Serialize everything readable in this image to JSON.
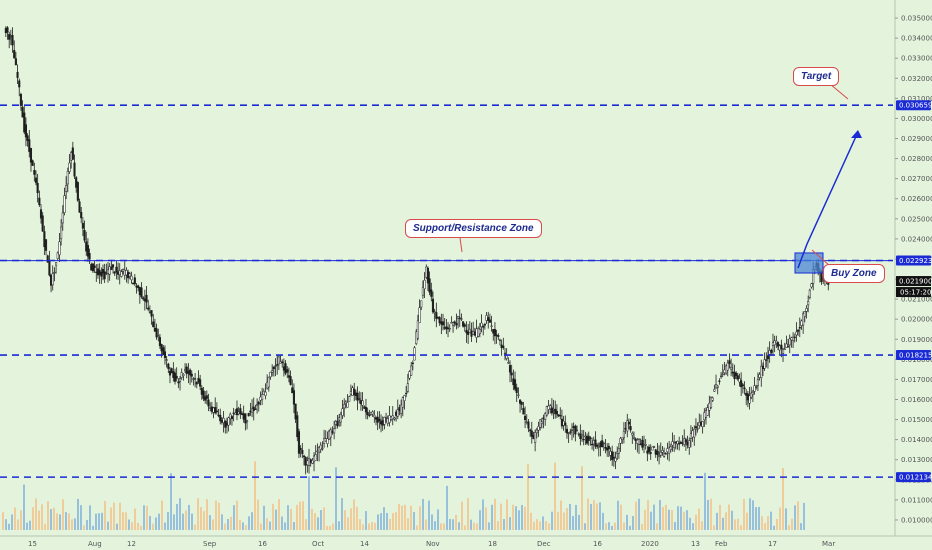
{
  "chart_data": {
    "type": "candlestick",
    "y_ticks": [
      "0.035000",
      "0.034000",
      "0.033000",
      "0.032000",
      "0.031000",
      "0.030000",
      "0.029000",
      "0.028000",
      "0.027000",
      "0.026000",
      "0.025000",
      "0.024000",
      "0.023000",
      "0.022000",
      "0.021000",
      "0.020000",
      "0.019000",
      "0.018000",
      "0.017000",
      "0.016000",
      "0.015000",
      "0.014000",
      "0.013000",
      "0.012000",
      "0.011000",
      "0.010000"
    ],
    "x_ticks": [
      "15",
      "Aug",
      "12",
      "Sep",
      "16",
      "Oct",
      "14",
      "Nov",
      "18",
      "Dec",
      "16",
      "2020",
      "13",
      "Feb",
      "17",
      "Mar"
    ],
    "ylim": [
      0.0095,
      0.0355
    ],
    "levels": [
      {
        "value": 0.030659,
        "label": "0.030659"
      },
      {
        "value": 0.022923,
        "label": "0.022923"
      },
      {
        "value": 0.018215,
        "label": "0.018215"
      },
      {
        "value": 0.012134,
        "label": "0.012134"
      }
    ],
    "current_price": "0.021900",
    "countdown": "05:17:20",
    "price_path": [
      [
        0,
        0.0345
      ],
      [
        1,
        0.034
      ],
      [
        2,
        0.032
      ],
      [
        3,
        0.0295
      ],
      [
        4,
        0.028
      ],
      [
        5,
        0.0262
      ],
      [
        6,
        0.0238
      ],
      [
        7,
        0.0218
      ],
      [
        8,
        0.0232
      ],
      [
        9,
        0.0262
      ],
      [
        10,
        0.0285
      ],
      [
        11,
        0.026
      ],
      [
        12,
        0.0238
      ],
      [
        13,
        0.0226
      ],
      [
        14,
        0.0224
      ],
      [
        15,
        0.0222
      ],
      [
        16,
        0.0226
      ],
      [
        17,
        0.0222
      ],
      [
        18,
        0.0224
      ],
      [
        19,
        0.022
      ],
      [
        20,
        0.0215
      ],
      [
        21,
        0.021
      ],
      [
        22,
        0.02
      ],
      [
        23,
        0.019
      ],
      [
        24,
        0.018
      ],
      [
        25,
        0.0172
      ],
      [
        26,
        0.017
      ],
      [
        27,
        0.0175
      ],
      [
        28,
        0.0172
      ],
      [
        29,
        0.0168
      ],
      [
        30,
        0.016
      ],
      [
        31,
        0.0155
      ],
      [
        32,
        0.0152
      ],
      [
        33,
        0.0148
      ],
      [
        34,
        0.0152
      ],
      [
        35,
        0.0155
      ],
      [
        36,
        0.015
      ],
      [
        37,
        0.0155
      ],
      [
        38,
        0.0158
      ],
      [
        39,
        0.0165
      ],
      [
        40,
        0.0175
      ],
      [
        41,
        0.018
      ],
      [
        42,
        0.0175
      ],
      [
        43,
        0.0165
      ],
      [
        44,
        0.0135
      ],
      [
        45,
        0.0128
      ],
      [
        46,
        0.013
      ],
      [
        47,
        0.0135
      ],
      [
        48,
        0.014
      ],
      [
        49,
        0.0145
      ],
      [
        50,
        0.015
      ],
      [
        51,
        0.0158
      ],
      [
        52,
        0.0165
      ],
      [
        53,
        0.016
      ],
      [
        54,
        0.0155
      ],
      [
        55,
        0.0152
      ],
      [
        56,
        0.0148
      ],
      [
        57,
        0.015
      ],
      [
        58,
        0.0152
      ],
      [
        59,
        0.0155
      ],
      [
        60,
        0.0165
      ],
      [
        61,
        0.018
      ],
      [
        62,
        0.0205
      ],
      [
        63,
        0.0225
      ],
      [
        64,
        0.0205
      ],
      [
        65,
        0.0198
      ],
      [
        66,
        0.0195
      ],
      [
        67,
        0.0198
      ],
      [
        68,
        0.02
      ],
      [
        69,
        0.0195
      ],
      [
        70,
        0.0192
      ],
      [
        71,
        0.0195
      ],
      [
        72,
        0.02
      ],
      [
        73,
        0.0195
      ],
      [
        74,
        0.0188
      ],
      [
        75,
        0.018
      ],
      [
        76,
        0.0168
      ],
      [
        77,
        0.0158
      ],
      [
        78,
        0.0148
      ],
      [
        79,
        0.014
      ],
      [
        80,
        0.0148
      ],
      [
        81,
        0.0155
      ],
      [
        82,
        0.0155
      ],
      [
        83,
        0.015
      ],
      [
        84,
        0.0145
      ],
      [
        85,
        0.0145
      ],
      [
        86,
        0.0142
      ],
      [
        87,
        0.014
      ],
      [
        88,
        0.0138
      ],
      [
        89,
        0.0138
      ],
      [
        90,
        0.0135
      ],
      [
        91,
        0.013
      ],
      [
        92,
        0.014
      ],
      [
        93,
        0.0148
      ],
      [
        94,
        0.014
      ],
      [
        95,
        0.0138
      ],
      [
        96,
        0.0135
      ],
      [
        97,
        0.0135
      ],
      [
        98,
        0.0132
      ],
      [
        99,
        0.0135
      ],
      [
        100,
        0.0138
      ],
      [
        101,
        0.014
      ],
      [
        102,
        0.0138
      ],
      [
        103,
        0.0145
      ],
      [
        104,
        0.0148
      ],
      [
        105,
        0.0155
      ],
      [
        106,
        0.0165
      ],
      [
        107,
        0.0172
      ],
      [
        108,
        0.0178
      ],
      [
        109,
        0.0172
      ],
      [
        110,
        0.0168
      ],
      [
        111,
        0.016
      ],
      [
        112,
        0.0165
      ],
      [
        113,
        0.0175
      ],
      [
        114,
        0.0182
      ],
      [
        115,
        0.0188
      ],
      [
        116,
        0.0185
      ],
      [
        117,
        0.0188
      ],
      [
        118,
        0.0192
      ],
      [
        119,
        0.0198
      ],
      [
        120,
        0.021
      ],
      [
        121,
        0.0228
      ],
      [
        122,
        0.022
      ],
      [
        123,
        0.0219
      ]
    ],
    "projection": [
      [
        123,
        0.0219
      ],
      [
        127,
        0.0239
      ],
      [
        132,
        0.0289
      ]
    ],
    "buy_zone": [
      0.0223,
      0.0233
    ]
  },
  "annotations": {
    "support_resistance": "Support/Resistance Zone",
    "target": "Target",
    "buy_zone": "Buy Zone"
  },
  "colors": {
    "background": "#e3f3dc",
    "level_line": "#1a2bd6",
    "label_bg": "#1a2bd6",
    "candle": "#1e1e1e",
    "volume_up": "#8ab6dc",
    "volume_down": "#f2c48f",
    "callout_border": "#d94b4b",
    "callout_text": "#1d2a8e",
    "zone_fill": "#4a86d6"
  }
}
